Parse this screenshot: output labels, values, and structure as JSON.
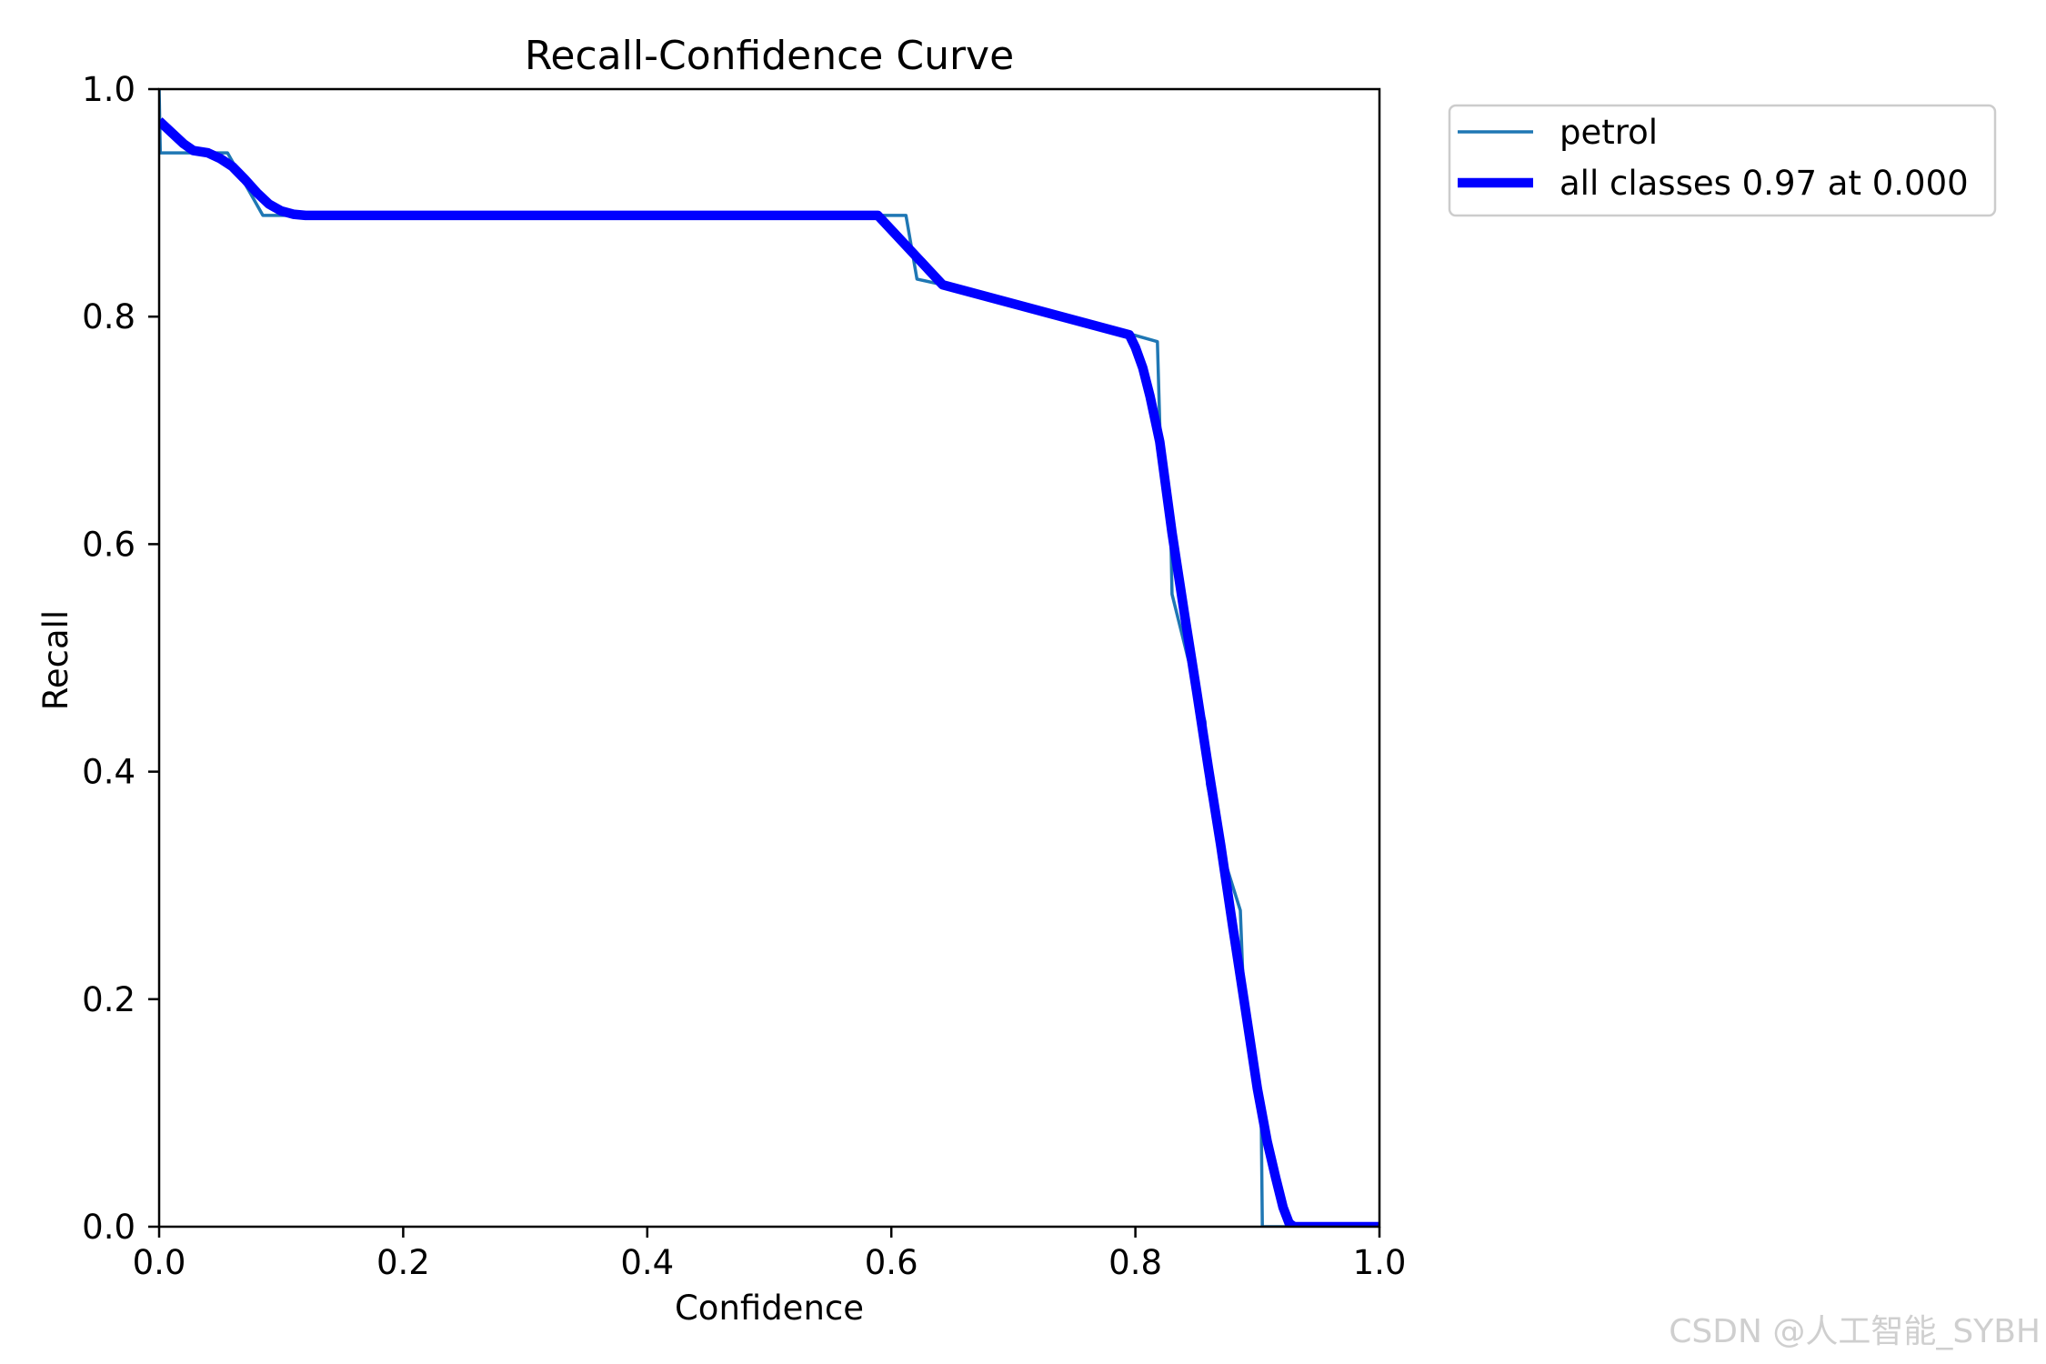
{
  "chart_data": {
    "type": "line",
    "title": "Recall-Confidence Curve",
    "xlabel": "Confidence",
    "ylabel": "Recall",
    "xlim": [
      0,
      1
    ],
    "ylim": [
      0,
      1
    ],
    "xticks": [
      "0.0",
      "0.2",
      "0.4",
      "0.6",
      "0.8",
      "1.0"
    ],
    "yticks": [
      "0.0",
      "0.2",
      "0.4",
      "0.6",
      "0.8",
      "1.0"
    ],
    "grid": false,
    "legend": "upper-right-outside",
    "series": [
      {
        "name": "petrol",
        "color": "#1f77b4",
        "x": [
          0.0,
          0.001,
          0.056,
          0.085,
          0.612,
          0.621,
          0.642,
          0.795,
          0.818,
          0.821,
          0.829,
          0.83,
          0.843,
          0.857,
          0.859,
          0.87,
          0.886,
          0.888,
          0.896,
          0.903,
          0.904,
          1.0
        ],
        "y": [
          1.0,
          0.944,
          0.944,
          0.889,
          0.889,
          0.833,
          0.828,
          0.785,
          0.778,
          0.667,
          0.611,
          0.556,
          0.5,
          0.444,
          0.389,
          0.333,
          0.278,
          0.222,
          0.167,
          0.111,
          0.0,
          0.0
        ]
      },
      {
        "name": "all classes 0.97 at 0.000",
        "color": "#0000ff",
        "x": [
          0.0,
          0.01,
          0.02,
          0.028,
          0.04,
          0.05,
          0.06,
          0.07,
          0.08,
          0.09,
          0.1,
          0.11,
          0.12,
          0.589,
          0.642,
          0.795,
          0.8,
          0.806,
          0.812,
          0.82,
          0.83,
          0.84,
          0.85,
          0.86,
          0.87,
          0.88,
          0.89,
          0.9,
          0.908,
          0.915,
          0.921,
          0.926,
          0.93,
          1.0
        ],
        "y": [
          0.972,
          0.962,
          0.952,
          0.946,
          0.944,
          0.939,
          0.932,
          0.921,
          0.909,
          0.899,
          0.893,
          0.89,
          0.889,
          0.889,
          0.828,
          0.784,
          0.773,
          0.755,
          0.73,
          0.69,
          0.61,
          0.54,
          0.472,
          0.402,
          0.335,
          0.262,
          0.192,
          0.121,
          0.075,
          0.043,
          0.017,
          0.003,
          0.0,
          0.0
        ]
      }
    ]
  },
  "watermark": "CSDN @人工智能_SYBH"
}
